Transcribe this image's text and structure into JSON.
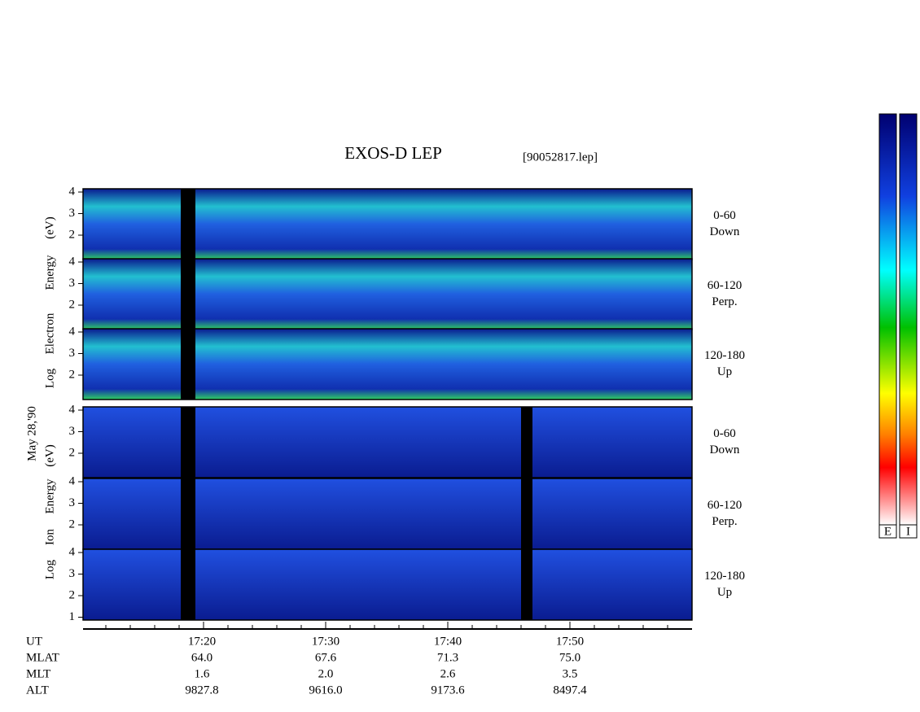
{
  "title": "EXOS-D LEP",
  "file": "[90052817.lep]",
  "date": "May 28,'90",
  "groups": [
    {
      "axis_label": [
        "Log",
        "Electron",
        "Energy",
        "(eV)"
      ],
      "panels": [
        {
          "label": [
            "0-60",
            "Down"
          ],
          "ticks": [
            2,
            3,
            4
          ]
        },
        {
          "label": [
            "60-120",
            "Perp."
          ],
          "ticks": [
            2,
            3,
            4
          ]
        },
        {
          "label": [
            "120-180",
            "Up"
          ],
          "ticks": [
            2,
            3,
            4
          ]
        }
      ]
    },
    {
      "axis_label": [
        "Log",
        "Ion",
        "Energy",
        "(eV)"
      ],
      "panels": [
        {
          "label": [
            "0-60",
            "Down"
          ],
          "ticks": [
            2,
            3,
            4
          ]
        },
        {
          "label": [
            "60-120",
            "Perp."
          ],
          "ticks": [
            2,
            3,
            4
          ]
        },
        {
          "label": [
            "120-180",
            "Up"
          ],
          "ticks": [
            1,
            2,
            3,
            4
          ]
        }
      ]
    }
  ],
  "orbit": [
    {
      "name": "UT",
      "values": [
        "17:20",
        "17:30",
        "17:40",
        "17:50"
      ]
    },
    {
      "name": "MLAT",
      "values": [
        "64.0",
        "67.6",
        "71.3",
        "75.0"
      ]
    },
    {
      "name": "MLT",
      "values": [
        "1.6",
        "2.0",
        "2.6",
        "3.5"
      ]
    },
    {
      "name": "ALT",
      "values": [
        "9827.8",
        "9616.0",
        "9173.6",
        "8497.4"
      ]
    }
  ],
  "colorbars": [
    "E",
    "I"
  ]
}
